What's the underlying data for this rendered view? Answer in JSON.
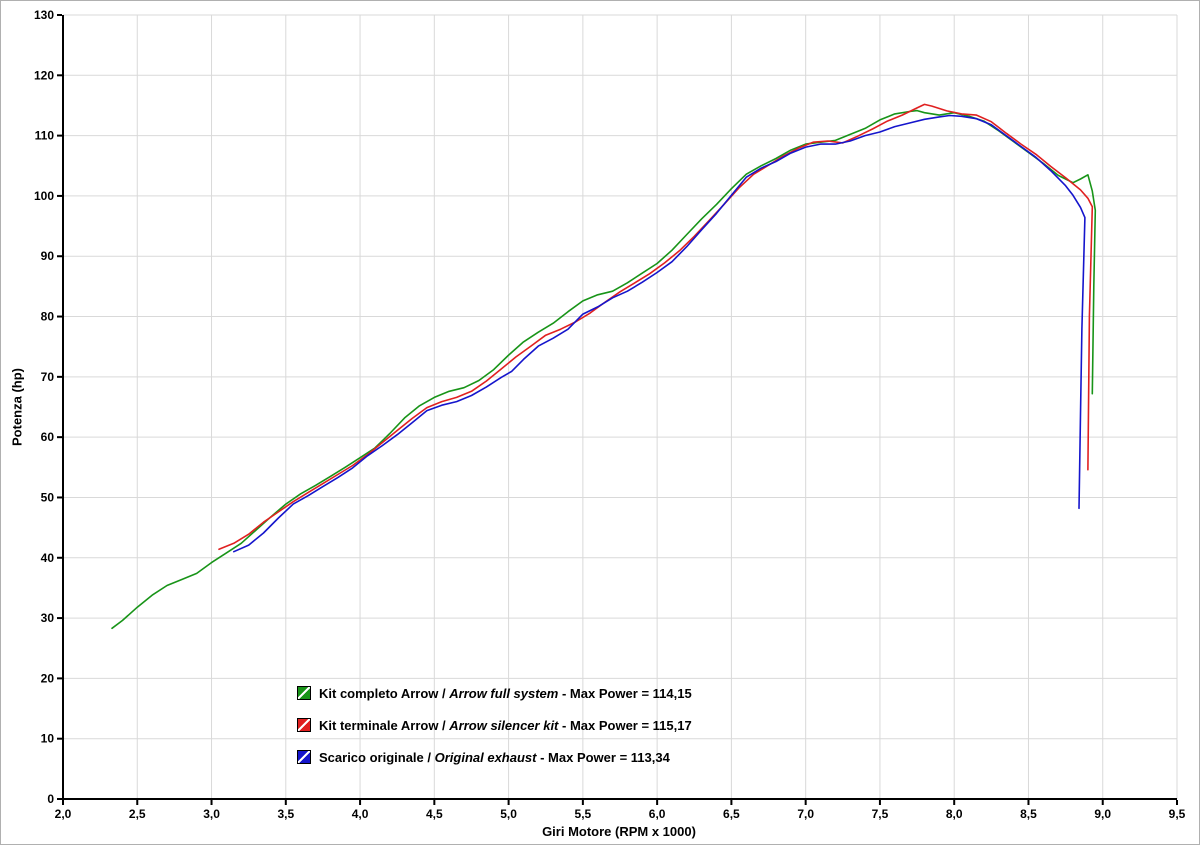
{
  "chart_data": {
    "type": "line",
    "title": "",
    "xlabel": "Giri Motore (RPM x 1000)",
    "ylabel": "Potenza (hp)",
    "xlim": [
      2.0,
      9.5
    ],
    "ylim": [
      0,
      130
    ],
    "grid": true,
    "legend_position": "inside-bottom-center",
    "grid_color": "#d9d9d9",
    "axis_color": "#000000",
    "legend_separator": " / ",
    "x_tick_values": [
      2.0,
      2.5,
      3.0,
      3.5,
      4.0,
      4.5,
      5.0,
      5.5,
      6.0,
      6.5,
      7.0,
      7.5,
      8.0,
      8.5,
      9.0,
      9.5
    ],
    "x_tick_labels": [
      "2,0",
      "2,5",
      "3,0",
      "3,5",
      "4,0",
      "4,5",
      "5,0",
      "5,5",
      "6,0",
      "6,5",
      "7,0",
      "7,5",
      "8,0",
      "8,5",
      "9,0",
      "9,5"
    ],
    "y_tick_values": [
      0,
      10,
      20,
      30,
      40,
      50,
      60,
      70,
      80,
      90,
      100,
      110,
      120,
      130
    ],
    "y_tick_labels": [
      "0",
      "10",
      "20",
      "30",
      "40",
      "50",
      "60",
      "70",
      "80",
      "90",
      "100",
      "110",
      "120",
      "130"
    ],
    "series": [
      {
        "id": "arrow-full-system",
        "label_it": "Kit completo Arrow",
        "label_en": "Arrow full system",
        "label_max": " - Max Power = 114,15",
        "max_power": 114.15,
        "color": "#189418",
        "points": [
          [
            2.33,
            28.3
          ],
          [
            2.4,
            29.6
          ],
          [
            2.5,
            31.8
          ],
          [
            2.6,
            33.8
          ],
          [
            2.7,
            35.4
          ],
          [
            2.8,
            36.4
          ],
          [
            2.9,
            37.4
          ],
          [
            3.0,
            39.2
          ],
          [
            3.1,
            40.8
          ],
          [
            3.2,
            42.4
          ],
          [
            3.3,
            44.6
          ],
          [
            3.4,
            46.8
          ],
          [
            3.5,
            48.9
          ],
          [
            3.6,
            50.6
          ],
          [
            3.7,
            52.0
          ],
          [
            3.8,
            53.5
          ],
          [
            3.9,
            55.0
          ],
          [
            4.0,
            56.6
          ],
          [
            4.1,
            58.2
          ],
          [
            4.2,
            60.6
          ],
          [
            4.3,
            63.2
          ],
          [
            4.4,
            65.2
          ],
          [
            4.5,
            66.6
          ],
          [
            4.6,
            67.6
          ],
          [
            4.7,
            68.2
          ],
          [
            4.8,
            69.4
          ],
          [
            4.9,
            71.2
          ],
          [
            5.0,
            73.6
          ],
          [
            5.1,
            75.8
          ],
          [
            5.2,
            77.4
          ],
          [
            5.3,
            78.9
          ],
          [
            5.4,
            80.8
          ],
          [
            5.5,
            82.6
          ],
          [
            5.6,
            83.6
          ],
          [
            5.7,
            84.2
          ],
          [
            5.8,
            85.6
          ],
          [
            5.9,
            87.2
          ],
          [
            6.0,
            88.8
          ],
          [
            6.1,
            91.0
          ],
          [
            6.2,
            93.6
          ],
          [
            6.3,
            96.2
          ],
          [
            6.4,
            98.6
          ],
          [
            6.5,
            101.2
          ],
          [
            6.6,
            103.6
          ],
          [
            6.7,
            105.0
          ],
          [
            6.8,
            106.2
          ],
          [
            6.9,
            107.6
          ],
          [
            7.0,
            108.6
          ],
          [
            7.1,
            108.9
          ],
          [
            7.2,
            109.2
          ],
          [
            7.3,
            110.2
          ],
          [
            7.4,
            111.2
          ],
          [
            7.5,
            112.6
          ],
          [
            7.6,
            113.6
          ],
          [
            7.7,
            114.0
          ],
          [
            7.75,
            114.15
          ],
          [
            7.8,
            113.8
          ],
          [
            7.9,
            113.4
          ],
          [
            8.0,
            113.8
          ],
          [
            8.1,
            113.2
          ],
          [
            8.2,
            112.4
          ],
          [
            8.3,
            110.8
          ],
          [
            8.4,
            109.0
          ],
          [
            8.5,
            107.2
          ],
          [
            8.6,
            105.4
          ],
          [
            8.7,
            103.4
          ],
          [
            8.8,
            102.2
          ],
          [
            8.85,
            102.8
          ],
          [
            8.9,
            103.5
          ],
          [
            8.93,
            100.8
          ],
          [
            8.95,
            97.6
          ],
          [
            8.94,
            85.0
          ],
          [
            8.93,
            67.2
          ]
        ]
      },
      {
        "id": "arrow-silencer-kit",
        "label_it": "Kit terminale Arrow",
        "label_en": "Arrow silencer kit",
        "label_max": " - Max Power = 115,17",
        "max_power": 115.17,
        "color": "#e02020",
        "points": [
          [
            3.05,
            41.4
          ],
          [
            3.15,
            42.4
          ],
          [
            3.25,
            43.9
          ],
          [
            3.35,
            45.9
          ],
          [
            3.45,
            47.6
          ],
          [
            3.55,
            49.3
          ],
          [
            3.65,
            50.8
          ],
          [
            3.75,
            52.3
          ],
          [
            3.85,
            53.8
          ],
          [
            3.95,
            55.3
          ],
          [
            4.05,
            57.1
          ],
          [
            4.15,
            59.1
          ],
          [
            4.25,
            61.1
          ],
          [
            4.35,
            63.1
          ],
          [
            4.45,
            64.9
          ],
          [
            4.55,
            65.9
          ],
          [
            4.65,
            66.6
          ],
          [
            4.75,
            67.6
          ],
          [
            4.85,
            69.3
          ],
          [
            4.95,
            71.3
          ],
          [
            5.05,
            73.3
          ],
          [
            5.15,
            75.1
          ],
          [
            5.25,
            76.9
          ],
          [
            5.35,
            77.9
          ],
          [
            5.45,
            79.1
          ],
          [
            5.55,
            80.6
          ],
          [
            5.65,
            82.4
          ],
          [
            5.75,
            84.1
          ],
          [
            5.85,
            85.6
          ],
          [
            5.95,
            87.1
          ],
          [
            6.05,
            88.9
          ],
          [
            6.15,
            90.9
          ],
          [
            6.25,
            93.3
          ],
          [
            6.35,
            95.9
          ],
          [
            6.45,
            98.6
          ],
          [
            6.55,
            101.3
          ],
          [
            6.65,
            103.6
          ],
          [
            6.75,
            105.1
          ],
          [
            6.85,
            106.6
          ],
          [
            6.95,
            107.9
          ],
          [
            7.05,
            108.9
          ],
          [
            7.15,
            109.1
          ],
          [
            7.25,
            108.8
          ],
          [
            7.35,
            109.9
          ],
          [
            7.45,
            111.1
          ],
          [
            7.55,
            112.4
          ],
          [
            7.65,
            113.4
          ],
          [
            7.75,
            114.6
          ],
          [
            7.8,
            115.17
          ],
          [
            7.85,
            114.9
          ],
          [
            7.95,
            114.1
          ],
          [
            8.05,
            113.6
          ],
          [
            8.15,
            113.4
          ],
          [
            8.25,
            112.3
          ],
          [
            8.35,
            110.4
          ],
          [
            8.45,
            108.6
          ],
          [
            8.55,
            106.9
          ],
          [
            8.65,
            104.9
          ],
          [
            8.75,
            103.0
          ],
          [
            8.85,
            101.0
          ],
          [
            8.9,
            99.6
          ],
          [
            8.93,
            98.2
          ],
          [
            8.91,
            80.0
          ],
          [
            8.9,
            54.6
          ]
        ]
      },
      {
        "id": "original-exhaust",
        "label_it": "Scarico originale",
        "label_en": "Original exhaust",
        "label_max": " - Max Power = 113,34",
        "max_power": 113.34,
        "color": "#1515cc",
        "points": [
          [
            3.15,
            41.0
          ],
          [
            3.25,
            42.1
          ],
          [
            3.35,
            44.1
          ],
          [
            3.45,
            46.6
          ],
          [
            3.55,
            48.9
          ],
          [
            3.65,
            50.3
          ],
          [
            3.75,
            51.8
          ],
          [
            3.85,
            53.3
          ],
          [
            3.95,
            54.9
          ],
          [
            4.05,
            56.9
          ],
          [
            4.15,
            58.6
          ],
          [
            4.25,
            60.4
          ],
          [
            4.35,
            62.4
          ],
          [
            4.45,
            64.4
          ],
          [
            4.55,
            65.3
          ],
          [
            4.65,
            65.9
          ],
          [
            4.75,
            66.9
          ],
          [
            4.85,
            68.3
          ],
          [
            4.95,
            69.9
          ],
          [
            5.02,
            70.9
          ],
          [
            5.1,
            72.9
          ],
          [
            5.2,
            75.1
          ],
          [
            5.3,
            76.4
          ],
          [
            5.4,
            77.9
          ],
          [
            5.5,
            80.4
          ],
          [
            5.6,
            81.6
          ],
          [
            5.7,
            83.1
          ],
          [
            5.8,
            84.2
          ],
          [
            5.9,
            85.7
          ],
          [
            6.0,
            87.3
          ],
          [
            6.1,
            89.1
          ],
          [
            6.2,
            91.6
          ],
          [
            6.3,
            94.4
          ],
          [
            6.4,
            97.1
          ],
          [
            6.5,
            100.1
          ],
          [
            6.6,
            103.1
          ],
          [
            6.7,
            104.6
          ],
          [
            6.8,
            105.7
          ],
          [
            6.9,
            107.1
          ],
          [
            7.0,
            108.1
          ],
          [
            7.1,
            108.6
          ],
          [
            7.2,
            108.6
          ],
          [
            7.3,
            109.1
          ],
          [
            7.4,
            110.0
          ],
          [
            7.5,
            110.6
          ],
          [
            7.6,
            111.5
          ],
          [
            7.7,
            112.1
          ],
          [
            7.8,
            112.7
          ],
          [
            7.9,
            113.1
          ],
          [
            7.97,
            113.34
          ],
          [
            8.05,
            113.2
          ],
          [
            8.15,
            112.8
          ],
          [
            8.25,
            111.8
          ],
          [
            8.35,
            110.0
          ],
          [
            8.45,
            108.2
          ],
          [
            8.55,
            106.4
          ],
          [
            8.65,
            104.2
          ],
          [
            8.75,
            101.7
          ],
          [
            8.8,
            100.1
          ],
          [
            8.85,
            98.1
          ],
          [
            8.88,
            96.4
          ],
          [
            8.86,
            78.0
          ],
          [
            8.85,
            63.8
          ],
          [
            8.84,
            48.2
          ]
        ]
      }
    ]
  }
}
